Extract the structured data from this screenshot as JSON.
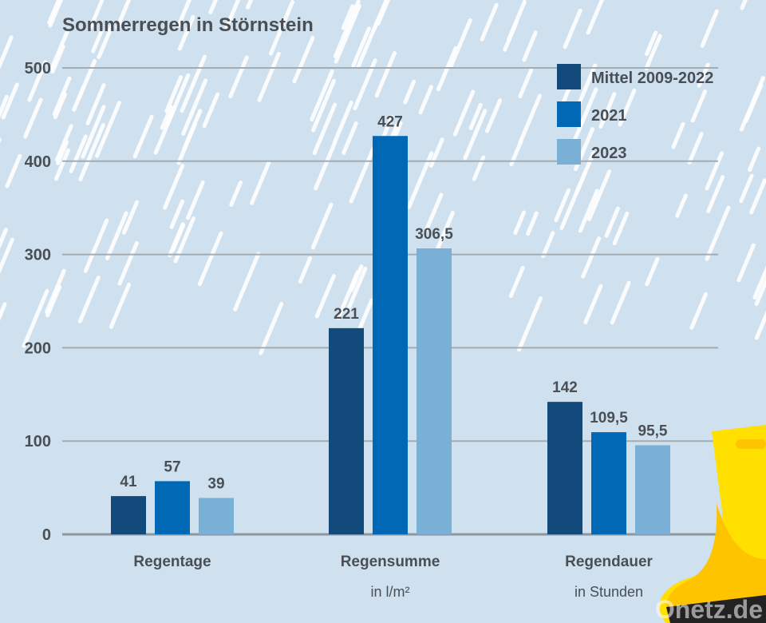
{
  "chart_data": {
    "type": "bar",
    "title": "Sommerregen in Störnstein",
    "categories": [
      "Regentage",
      "Regensumme",
      "Regendauer"
    ],
    "category_sublabels": [
      "",
      "in l/m²",
      "in Stunden"
    ],
    "series": [
      {
        "name": "Mittel 2009-2022",
        "values": [
          41,
          221,
          142
        ],
        "labels": [
          "41",
          "221",
          "142"
        ],
        "color": "#134a7c"
      },
      {
        "name": "2021",
        "values": [
          57,
          427,
          109.5
        ],
        "labels": [
          "57",
          "427",
          "109,5"
        ],
        "color": "#0068b4"
      },
      {
        "name": "2023",
        "values": [
          39,
          306.5,
          95.5
        ],
        "labels": [
          "39",
          "306,5",
          "95,5"
        ],
        "color": "#7aafd6"
      }
    ],
    "ylim": [
      0,
      500
    ],
    "yticks": [
      "0",
      "100",
      "200",
      "300",
      "400",
      "500"
    ],
    "grid": true,
    "legend": "top-right"
  },
  "watermark": "Onetz.de",
  "colors": {
    "background": "#cfe0ef",
    "text": "#4a4f55",
    "grid": "#9aa3ab",
    "boot": "#ffe000"
  }
}
